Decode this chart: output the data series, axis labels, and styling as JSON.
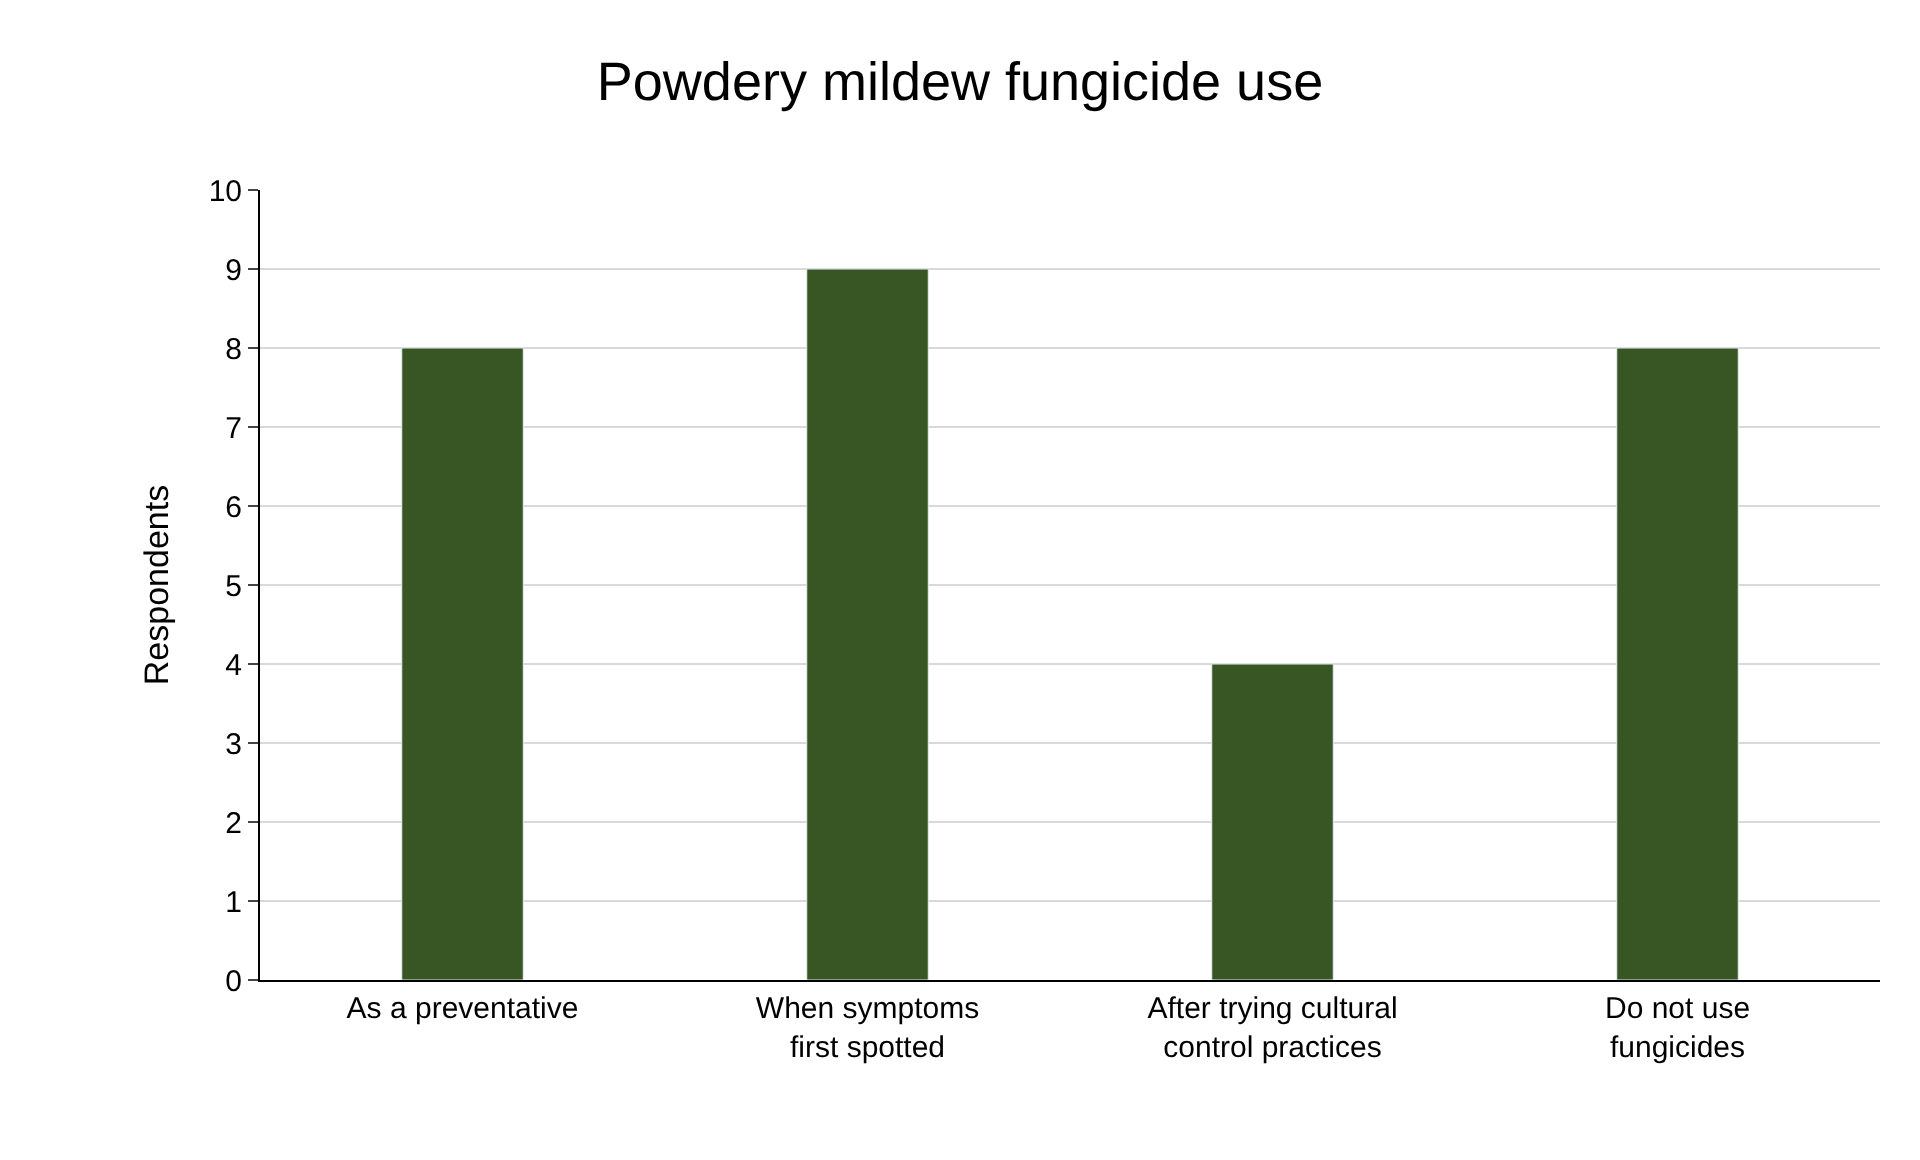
{
  "chart_data": {
    "type": "bar",
    "title": "Powdery mildew fungicide use",
    "ylabel": "Respondents",
    "categories": [
      "As a preventative",
      "When symptoms first spotted",
      "After trying cultural control practices",
      "Do not use fungicides"
    ],
    "values": [
      8,
      9,
      4,
      8
    ],
    "color": "#375623",
    "ylim": [
      0,
      10
    ],
    "yticks": [
      0,
      1,
      2,
      3,
      4,
      5,
      6,
      7,
      8,
      9,
      10
    ],
    "grid": "y"
  }
}
